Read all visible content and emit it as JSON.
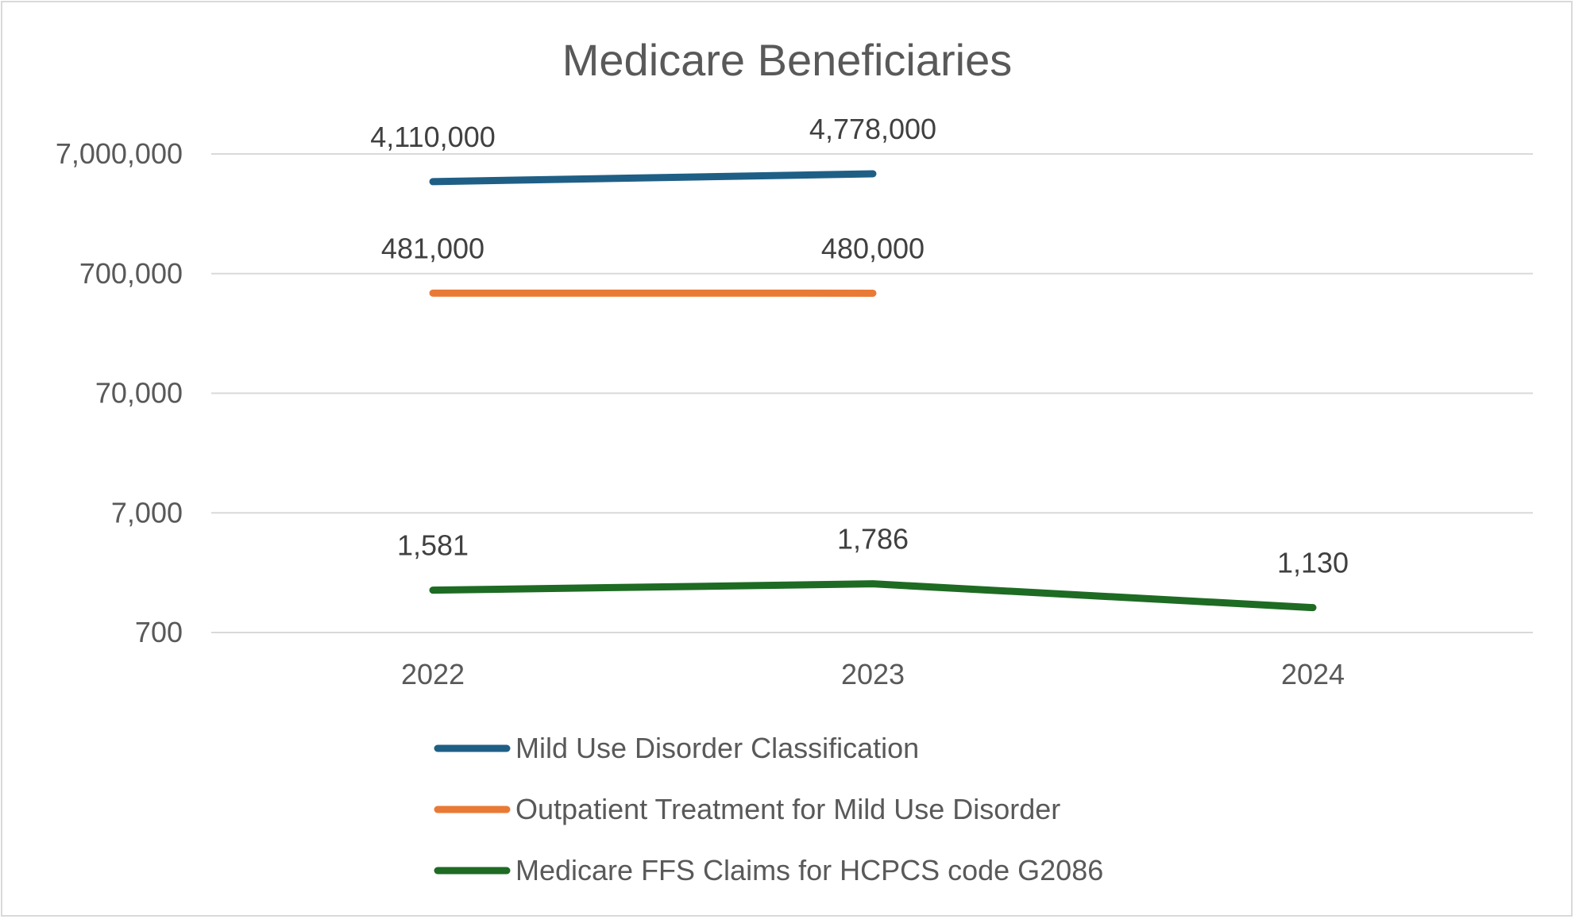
{
  "chart_data": {
    "type": "line",
    "title": "Medicare Beneficiaries",
    "categories": [
      "2022",
      "2023",
      "2024"
    ],
    "y_scale": "log",
    "ylim": [
      700,
      7000000
    ],
    "y_ticks": [
      700,
      7000,
      70000,
      700000,
      7000000
    ],
    "y_tick_labels": [
      "700",
      "7,000",
      "70,000",
      "700,000",
      "7,000,000"
    ],
    "grid": true,
    "legend_position": "bottom",
    "series": [
      {
        "name": "Mild Use Disorder Classification",
        "color": "#1f5f86",
        "values": [
          4110000,
          4778000,
          null
        ],
        "labels": [
          "4,110,000",
          "4,778,000",
          null
        ]
      },
      {
        "name": "Outpatient Treatment for Mild Use Disorder",
        "color": "#e97a35",
        "values": [
          481000,
          480000,
          null
        ],
        "labels": [
          "481,000",
          "480,000",
          null
        ]
      },
      {
        "name": "Medicare FFS Claims for HCPCS code G2086",
        "color": "#1e6b23",
        "values": [
          1581,
          1786,
          1130
        ],
        "labels": [
          "1,581",
          "1,786",
          "1,130"
        ]
      }
    ]
  }
}
